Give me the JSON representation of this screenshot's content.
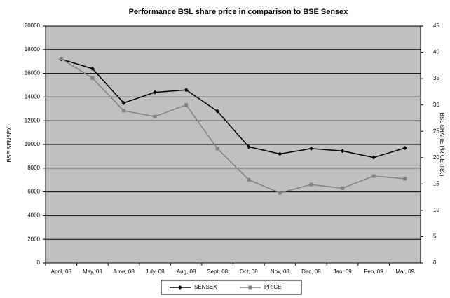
{
  "chart_data": {
    "type": "line",
    "title": "Performance BSL share price in comparison to BSE Sensex",
    "y_label": "BSE SENSEX",
    "y2_label": "BSL SHARE PRICE (Rs.)",
    "categories": [
      "April, 08",
      "May, 08",
      "June, 08",
      "July, 08",
      "Aug, 08",
      "Sept, 08",
      "Oct, 08",
      "Nov, 08",
      "Dec, 08",
      "Jan, 09",
      "Feb, 09",
      "Mar, 09"
    ],
    "series": [
      {
        "name": "SENSEX",
        "color": "#000000",
        "values": [
          17200,
          16400,
          13500,
          14400,
          14600,
          12800,
          9800,
          9200,
          9650,
          9450,
          8900,
          9700
        ]
      },
      {
        "name": "PRICE",
        "color": "#808080",
        "axis": "y2",
        "values": [
          38.8,
          35.1,
          28.9,
          27.8,
          30,
          21.7,
          15.8,
          13.3,
          14.9,
          14.2,
          16.5,
          16
        ]
      }
    ],
    "ylim": [
      0,
      20000
    ],
    "yticks": [
      0,
      2000,
      4000,
      6000,
      8000,
      10000,
      12000,
      14000,
      16000,
      18000,
      20000
    ],
    "y2lim": [
      0,
      45
    ],
    "y2ticks": [
      0,
      5,
      10,
      15,
      20,
      25,
      30,
      35,
      40,
      45
    ],
    "grid": true,
    "legend": "bottom",
    "background": "#c0c0c0"
  }
}
